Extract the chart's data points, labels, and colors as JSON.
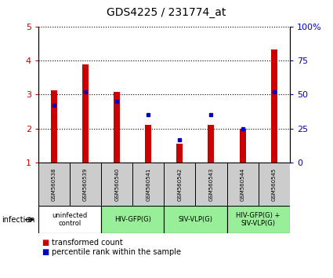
{
  "title": "GDS4225 / 231774_at",
  "samples": [
    "GSM560538",
    "GSM560539",
    "GSM560540",
    "GSM560541",
    "GSM560542",
    "GSM560543",
    "GSM560544",
    "GSM560545"
  ],
  "transformed_count": [
    3.12,
    3.88,
    3.08,
    2.12,
    1.55,
    2.12,
    2.0,
    4.32
  ],
  "percentile_rank": [
    42,
    52,
    45,
    35,
    17,
    35,
    25,
    52
  ],
  "ylim_left": [
    1,
    5
  ],
  "ylim_right": [
    0,
    100
  ],
  "yticks_left": [
    1,
    2,
    3,
    4,
    5
  ],
  "yticks_right": [
    0,
    25,
    50,
    75,
    100
  ],
  "bar_color": "#cc0000",
  "dot_color": "#0000cc",
  "bg_color": "#ffffff",
  "tick_color_left": "#cc0000",
  "tick_color_right": "#0000cc",
  "infection_label": "infection",
  "legend_bar_label": "transformed count",
  "legend_dot_label": "percentile rank within the sample",
  "sample_box_color": "#cccccc",
  "group_spans": [
    {
      "start": 0,
      "end": 1,
      "label": "uninfected\ncontrol",
      "color": "#ffffff"
    },
    {
      "start": 2,
      "end": 3,
      "label": "HIV-GFP(G)",
      "color": "#99ee99"
    },
    {
      "start": 4,
      "end": 5,
      "label": "SIV-VLP(G)",
      "color": "#99ee99"
    },
    {
      "start": 6,
      "end": 7,
      "label": "HIV-GFP(G) +\nSIV-VLP(G)",
      "color": "#99ee99"
    }
  ],
  "bar_width": 0.2
}
